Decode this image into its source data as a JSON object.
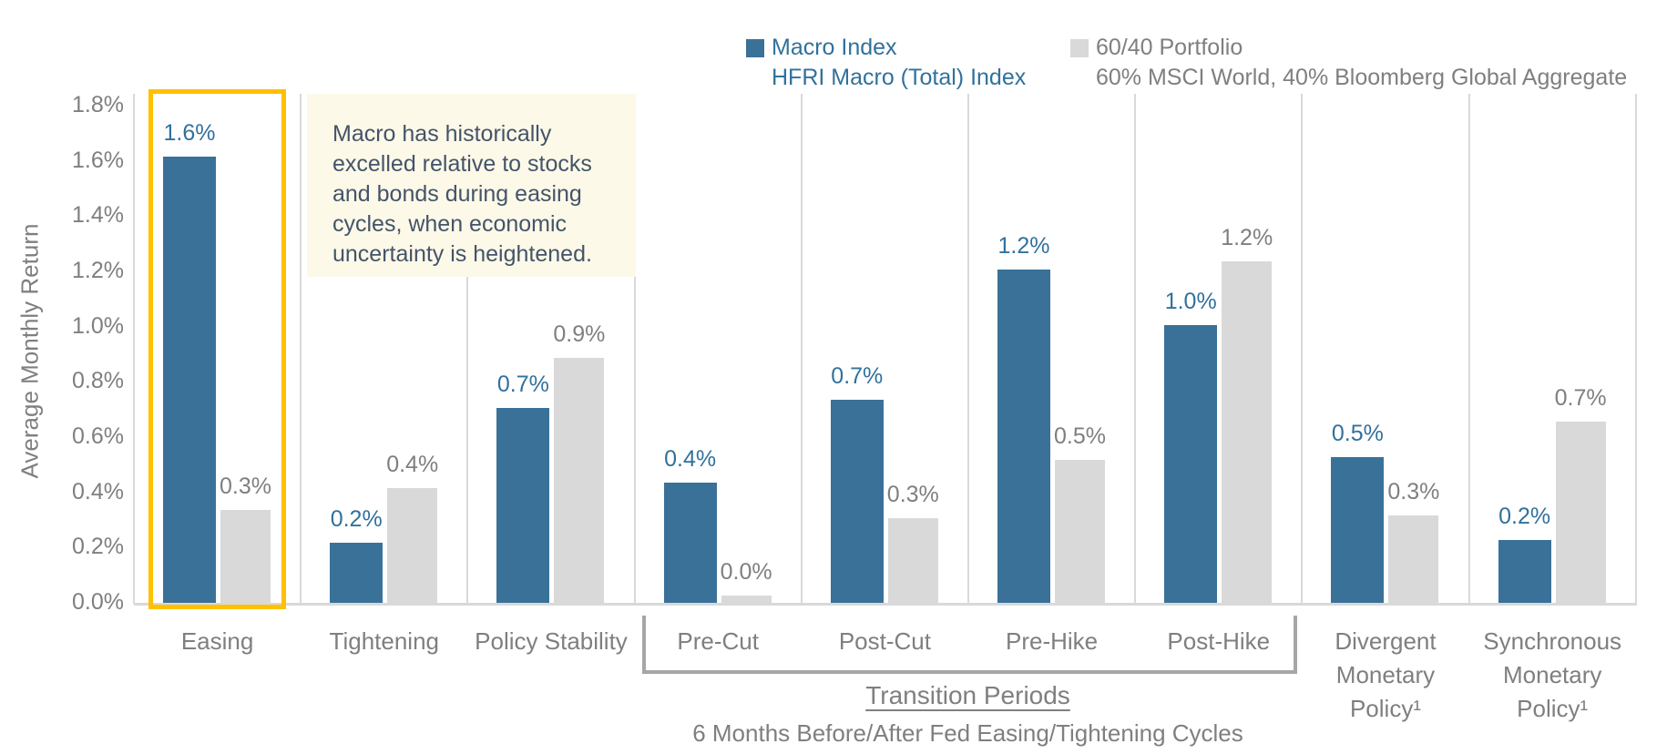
{
  "chart_data": {
    "type": "bar",
    "title": "",
    "ylabel": "Average Monthly Return",
    "ylim": [
      0,
      1.8
    ],
    "ytick_step": 0.2,
    "ytick_labels": [
      "0.0%",
      "0.2%",
      "0.4%",
      "0.6%",
      "0.8%",
      "1.0%",
      "1.2%",
      "1.4%",
      "1.6%",
      "1.8%"
    ],
    "grid": "vertical-category-separators",
    "legend_position": "top",
    "categories": [
      "Easing",
      "Tightening",
      "Policy Stability",
      "Pre-Cut",
      "Post-Cut",
      "Pre-Hike",
      "Post-Hike",
      "Divergent Monetary Policy¹",
      "Synchronous Monetary Policy¹"
    ],
    "series": [
      {
        "name": "Macro Index",
        "description": "HFRI Macro (Total) Index",
        "color": "#3a7199",
        "label_color": "#31719c",
        "values": [
          1.62,
          0.22,
          0.71,
          0.44,
          0.74,
          1.21,
          1.01,
          0.53,
          0.23
        ],
        "labels": [
          "1.6%",
          "0.2%",
          "0.7%",
          "0.4%",
          "0.7%",
          "1.2%",
          "1.0%",
          "0.5%",
          "0.2%"
        ]
      },
      {
        "name": "60/40 Portfolio",
        "description": "60% MSCI World, 40% Bloomberg Global Aggregate",
        "color": "#d9d9d9",
        "label_color": "#7f7f7f",
        "values": [
          0.34,
          0.42,
          0.89,
          0.03,
          0.31,
          0.52,
          1.24,
          0.32,
          0.66
        ],
        "labels": [
          "0.3%",
          "0.4%",
          "0.9%",
          "0.0%",
          "0.3%",
          "0.5%",
          "1.2%",
          "0.3%",
          "0.7%"
        ]
      }
    ]
  },
  "legend": {
    "items": [
      {
        "label": "Macro Index",
        "sublabel": "HFRI Macro (Total) Index",
        "text_color": "#31719c",
        "swatch_color": "#3a7199"
      },
      {
        "label": "60/40 Portfolio",
        "sublabel": "60% MSCI World, 40% Bloomberg Global Aggregate",
        "text_color": "#7f7f7f",
        "swatch_color": "#d9d9d9"
      }
    ]
  },
  "y_axis": {
    "title": "Average Monthly Return"
  },
  "annotation_box": {
    "text": "Macro has historically excelled relative to stocks and bonds during easing cycles, when economic uncertainty is heightened.",
    "background": "#fdf9e8",
    "text_color": "#44546a"
  },
  "highlight": {
    "category": "Easing",
    "border_color": "#ffc000"
  },
  "transition_group": {
    "label": "Transition Periods",
    "sublabel": "6 Months Before/After Fed Easing/Tightening Cycles",
    "categories": [
      "Pre-Cut",
      "Post-Cut",
      "Pre-Hike",
      "Post-Hike"
    ],
    "bracket_color": "#a6a6a6"
  }
}
